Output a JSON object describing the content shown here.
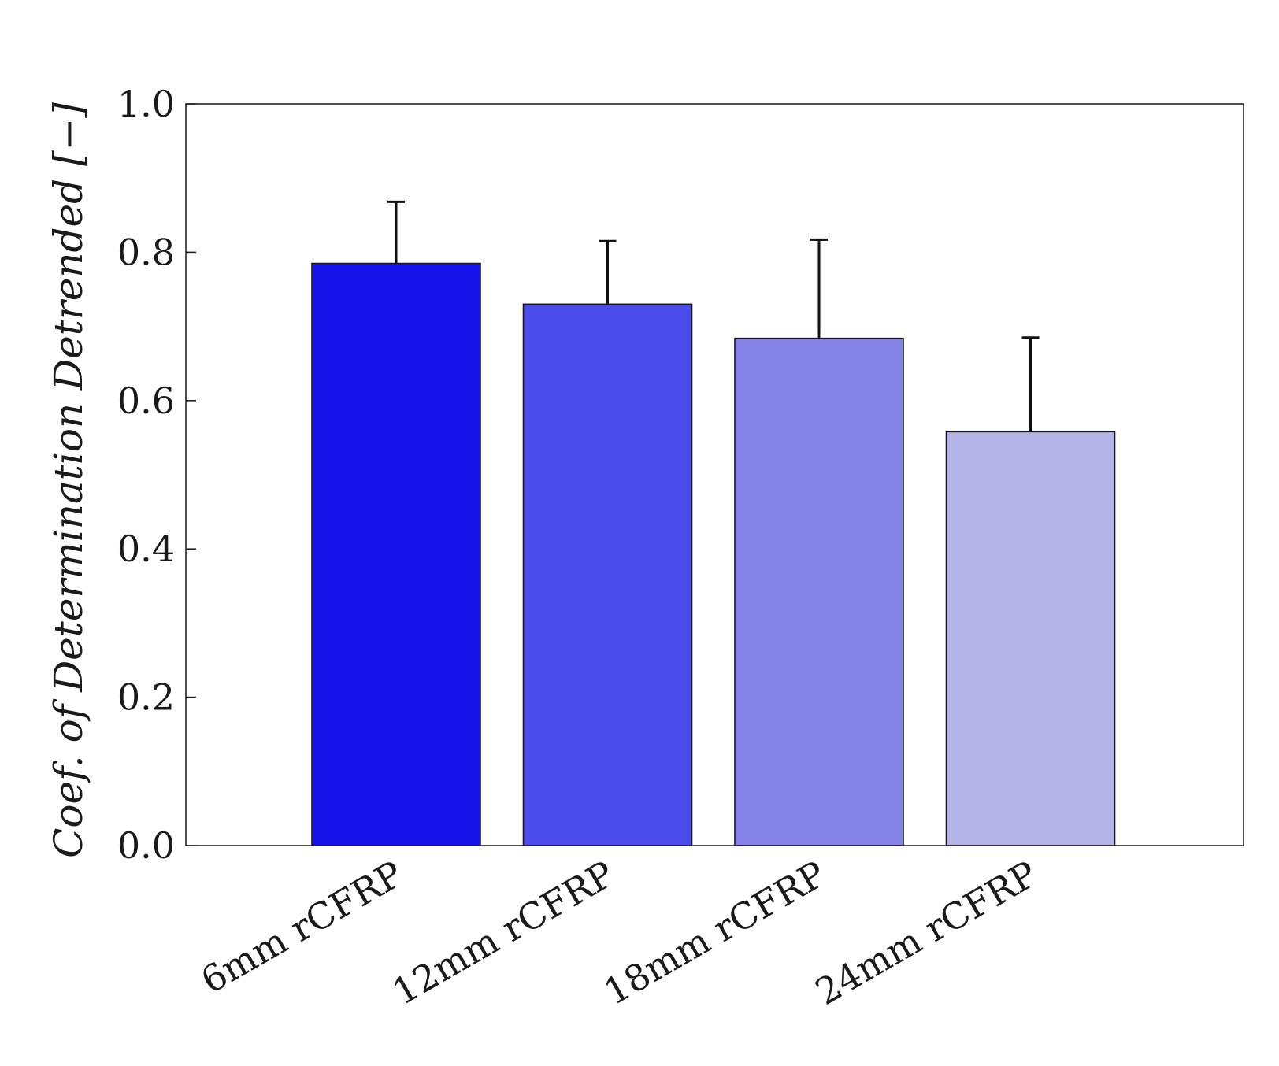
{
  "chart_data": {
    "type": "bar",
    "categories": [
      "6mm rCFRP",
      "12mm rCFRP",
      "18mm rCFRP",
      "24mm rCFRP"
    ],
    "values": [
      0.785,
      0.73,
      0.684,
      0.558
    ],
    "error_upper": [
      0.868,
      0.815,
      0.817,
      0.685
    ],
    "colors": [
      "#1414e8",
      "#4d4dec",
      "#8383e8",
      "#b4b4e8"
    ],
    "title": "",
    "xlabel": "",
    "ylabel": "Coef. of Determination Detrended [−]",
    "ylim": [
      0,
      1
    ],
    "yticks": [
      "0.0",
      "0.2",
      "0.4",
      "0.6",
      "0.8",
      "1.0"
    ],
    "grid": false,
    "legend": "none"
  }
}
